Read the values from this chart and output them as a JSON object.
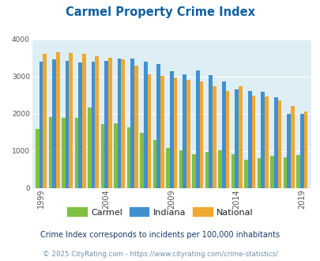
{
  "title": "Carmel Property Crime Index",
  "title_color": "#1060a0",
  "years": [
    1999,
    2000,
    2001,
    2002,
    2003,
    2004,
    2005,
    2006,
    2007,
    2008,
    2009,
    2010,
    2011,
    2012,
    2013,
    2014,
    2015,
    2016,
    2017,
    2018,
    2019
  ],
  "carmel": [
    1580,
    1900,
    1890,
    1880,
    2160,
    1720,
    1740,
    1630,
    1490,
    1290,
    1070,
    1010,
    900,
    960,
    1010,
    900,
    760,
    800,
    870,
    830,
    880
  ],
  "indiana": [
    3400,
    3460,
    3410,
    3380,
    3390,
    3420,
    3480,
    3470,
    3400,
    3330,
    3130,
    3060,
    3160,
    3040,
    2860,
    2640,
    2600,
    2590,
    2440,
    1990,
    2000
  ],
  "national": [
    3610,
    3650,
    3630,
    3600,
    3550,
    3490,
    3450,
    3290,
    3060,
    3010,
    2970,
    2910,
    2870,
    2730,
    2600,
    2730,
    2490,
    2450,
    2360,
    2200,
    2050
  ],
  "carmel_color": "#80c040",
  "indiana_color": "#4090d0",
  "national_color": "#f0a830",
  "bg_color": "#ddeef5",
  "ylim": [
    0,
    4000
  ],
  "yticks": [
    0,
    1000,
    2000,
    3000,
    4000
  ],
  "xtick_years": [
    1999,
    2004,
    2009,
    2014,
    2019
  ],
  "legend_labels": [
    "Carmel",
    "Indiana",
    "National"
  ],
  "footnote1": "Crime Index corresponds to incidents per 100,000 inhabitants",
  "footnote2": "© 2025 CityRating.com - https://www.cityrating.com/crime-statistics/",
  "footnote1_color": "#1a3a6a",
  "footnote2_color": "#7090b0",
  "bar_width": 0.28
}
